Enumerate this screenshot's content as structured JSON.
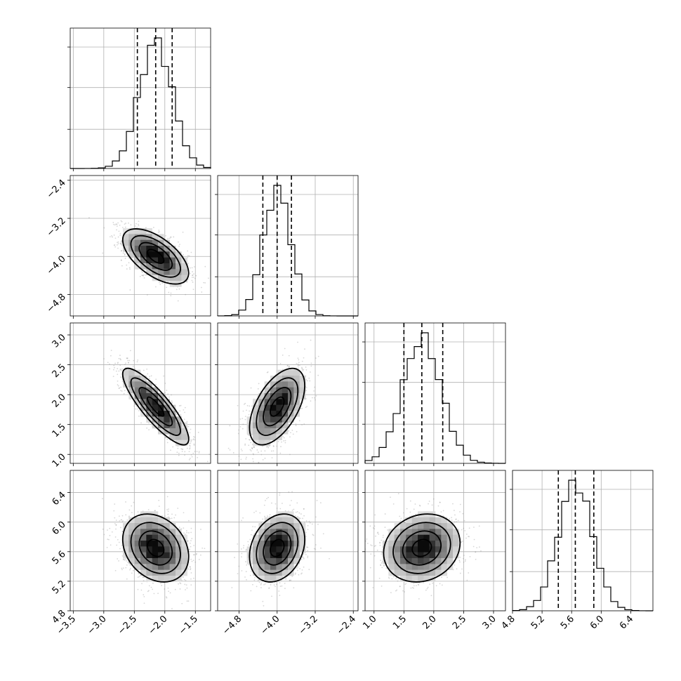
{
  "chart_data": {
    "type": "corner",
    "parameters": [
      {
        "index": 0,
        "median": -2.15,
        "q16": -2.45,
        "q84": -1.88,
        "std": 0.27,
        "range": [
          -3.55,
          -1.25
        ],
        "ticks": [
          -3.5,
          -3.0,
          -2.5,
          -2.0,
          -1.5
        ],
        "tick_labels": [
          "−3.5",
          "−3.0",
          "−2.5",
          "−2.0",
          "−1.5"
        ]
      },
      {
        "index": 1,
        "median": -4.0,
        "q16": -4.3,
        "q84": -3.7,
        "std": 0.29,
        "range": [
          -5.25,
          -2.3
        ],
        "ticks": [
          -4.8,
          -4.0,
          -3.2,
          -2.4
        ],
        "tick_labels": [
          "−4.8",
          "−4.0",
          "−3.2",
          "−2.4"
        ]
      },
      {
        "index": 2,
        "median": 1.8,
        "q16": 1.5,
        "q84": 2.15,
        "std": 0.32,
        "range": [
          0.85,
          3.2
        ],
        "ticks": [
          1.0,
          1.5,
          2.0,
          2.5,
          3.0
        ],
        "tick_labels": [
          "1.0",
          "1.5",
          "2.0",
          "2.5",
          "3.0"
        ]
      },
      {
        "index": 3,
        "median": 5.65,
        "q16": 5.42,
        "q84": 5.9,
        "std": 0.23,
        "range": [
          4.8,
          6.7
        ],
        "ticks": [
          4.8,
          5.2,
          5.6,
          6.0,
          6.4
        ],
        "tick_labels": [
          "4.8",
          "5.2",
          "5.6",
          "6.0",
          "6.4"
        ]
      }
    ],
    "pair_correlations": {
      "0-1": -0.6,
      "0-2": -0.85,
      "1-2": 0.55,
      "0-3": -0.25,
      "1-3": 0.25,
      "2-3": 0.15
    },
    "histogram_bins": 20,
    "quantile_lines": "dashed (16%, 50%, 84%)",
    "scatter_color": "#8c8c8c",
    "contour_color": "#000000",
    "grid": true
  }
}
